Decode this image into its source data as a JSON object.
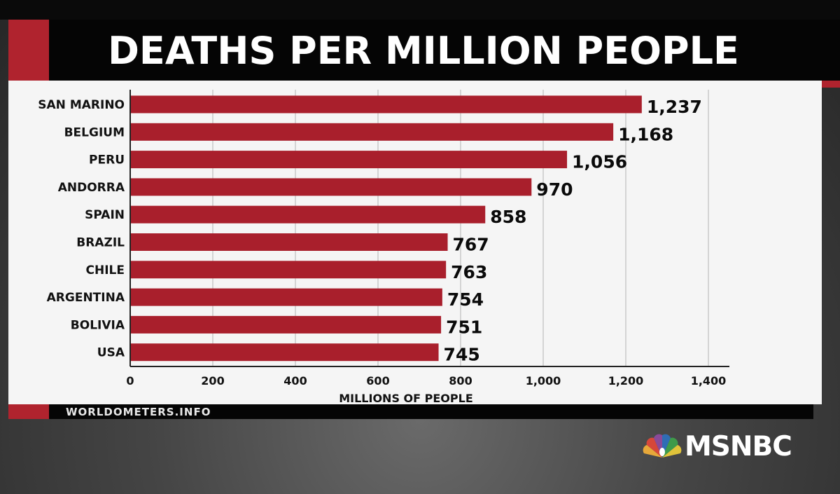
{
  "title": "DEATHS PER MILLION PEOPLE",
  "source": "WORLDOMETERS.INFO",
  "network": "MSNBC",
  "colors": {
    "bar": "#a91f2c",
    "accent": "#b0232e"
  },
  "chart_data": {
    "type": "bar",
    "orientation": "horizontal",
    "title": "DEATHS PER MILLION PEOPLE",
    "xlabel": "MILLIONS OF PEOPLE",
    "ylabel": "",
    "categories": [
      "SAN MARINO",
      "BELGIUM",
      "PERU",
      "ANDORRA",
      "SPAIN",
      "BRAZIL",
      "CHILE",
      "ARGENTINA",
      "BOLIVIA",
      "USA"
    ],
    "values": [
      1237,
      1168,
      1056,
      970,
      858,
      767,
      763,
      754,
      751,
      745
    ],
    "value_labels": [
      "1,237",
      "1,168",
      "1,056",
      "970",
      "858",
      "767",
      "763",
      "754",
      "751",
      "745"
    ],
    "xlim": [
      0,
      1400
    ],
    "xticks": [
      0,
      200,
      400,
      600,
      800,
      1000,
      1200,
      1400
    ],
    "xtick_labels": [
      "0",
      "200",
      "400",
      "600",
      "800",
      "1,000",
      "1,200",
      "1,400"
    ],
    "grid": true,
    "legend": "none"
  }
}
